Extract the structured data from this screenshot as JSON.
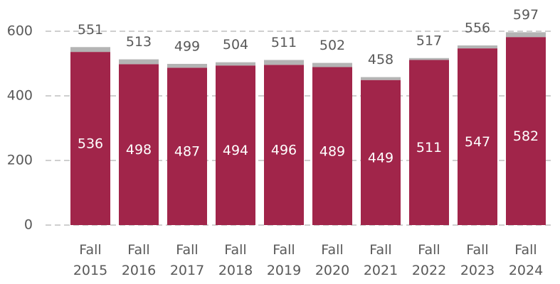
{
  "chart_data": {
    "type": "stacked_bar",
    "categories": [
      "Fall 2015",
      "Fall 2016",
      "Fall 2017",
      "Fall 2018",
      "Fall 2019",
      "Fall 2020",
      "Fall 2021",
      "Fall 2022",
      "Fall 2023",
      "Fall 2024"
    ],
    "series": [
      {
        "color": "#a1254a",
        "values": [
          536,
          498,
          487,
          494,
          496,
          489,
          449,
          511,
          547,
          582
        ]
      },
      {
        "color": "#b4b4b4",
        "values": [
          15,
          15,
          12,
          10,
          15,
          13,
          9,
          6,
          9,
          15
        ]
      }
    ],
    "totals": [
      551,
      513,
      499,
      504,
      511,
      502,
      458,
      517,
      556,
      597
    ],
    "ylim": [
      0,
      600
    ],
    "yticks": [
      0,
      200,
      400,
      600
    ],
    "grid": true
  }
}
